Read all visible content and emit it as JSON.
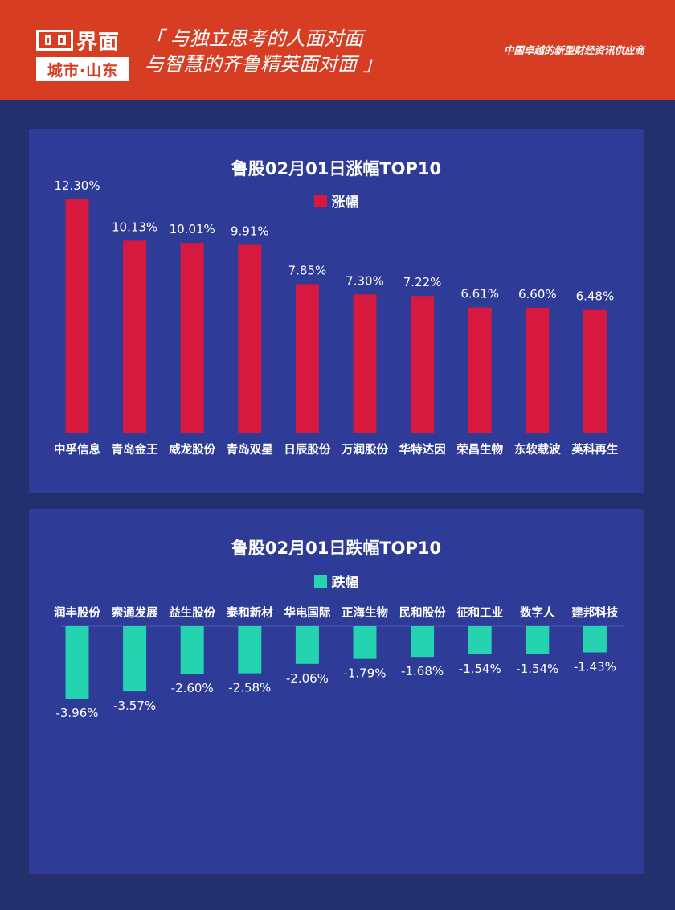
{
  "header": {
    "brand": "界面",
    "sub_brand": "城市·山东",
    "slogan_line1": "「 与独立思考的人面对面",
    "slogan_line2": "与智慧的齐鲁精英面对面 」",
    "tagline": "中国卓越的新型财经资讯供应商",
    "bg_color": "#d73d22"
  },
  "colors": {
    "page_bg": "#24306e",
    "panel_bg": "#2e3b97",
    "gain_bar": "#d8193f",
    "loss_bar": "#25d3b0"
  },
  "chart_data": [
    {
      "type": "bar",
      "title": "鲁股02月01日涨幅TOP10",
      "legend": "涨幅",
      "categories": [
        "中孚信息",
        "青岛金王",
        "威龙股份",
        "青岛双星",
        "日辰股份",
        "万润股份",
        "华特达因",
        "荣昌生物",
        "东软载波",
        "英科再生"
      ],
      "values": [
        12.3,
        10.13,
        10.01,
        9.91,
        7.85,
        7.3,
        7.22,
        6.61,
        6.6,
        6.48
      ],
      "value_labels": [
        "12.30%",
        "10.13%",
        "10.01%",
        "9.91%",
        "7.85%",
        "7.30%",
        "7.22%",
        "6.61%",
        "6.60%",
        "6.48%"
      ],
      "ylim": [
        0,
        12.3
      ],
      "grid": false
    },
    {
      "type": "bar",
      "title": "鲁股02月01日跌幅TOP10",
      "legend": "跌幅",
      "categories": [
        "润丰股份",
        "索通发展",
        "益生股份",
        "泰和新材",
        "华电国际",
        "正海生物",
        "民和股份",
        "征和工业",
        "数字人",
        "建邦科技"
      ],
      "values": [
        -3.96,
        -3.57,
        -2.6,
        -2.58,
        -2.06,
        -1.79,
        -1.68,
        -1.54,
        -1.54,
        -1.43
      ],
      "value_labels": [
        "-3.96%",
        "-3.57%",
        "-2.60%",
        "-2.58%",
        "-2.06%",
        "-1.79%",
        "-1.68%",
        "-1.54%",
        "-1.54%",
        "-1.43%"
      ],
      "ylim": [
        -3.96,
        0
      ],
      "grid": false
    }
  ]
}
